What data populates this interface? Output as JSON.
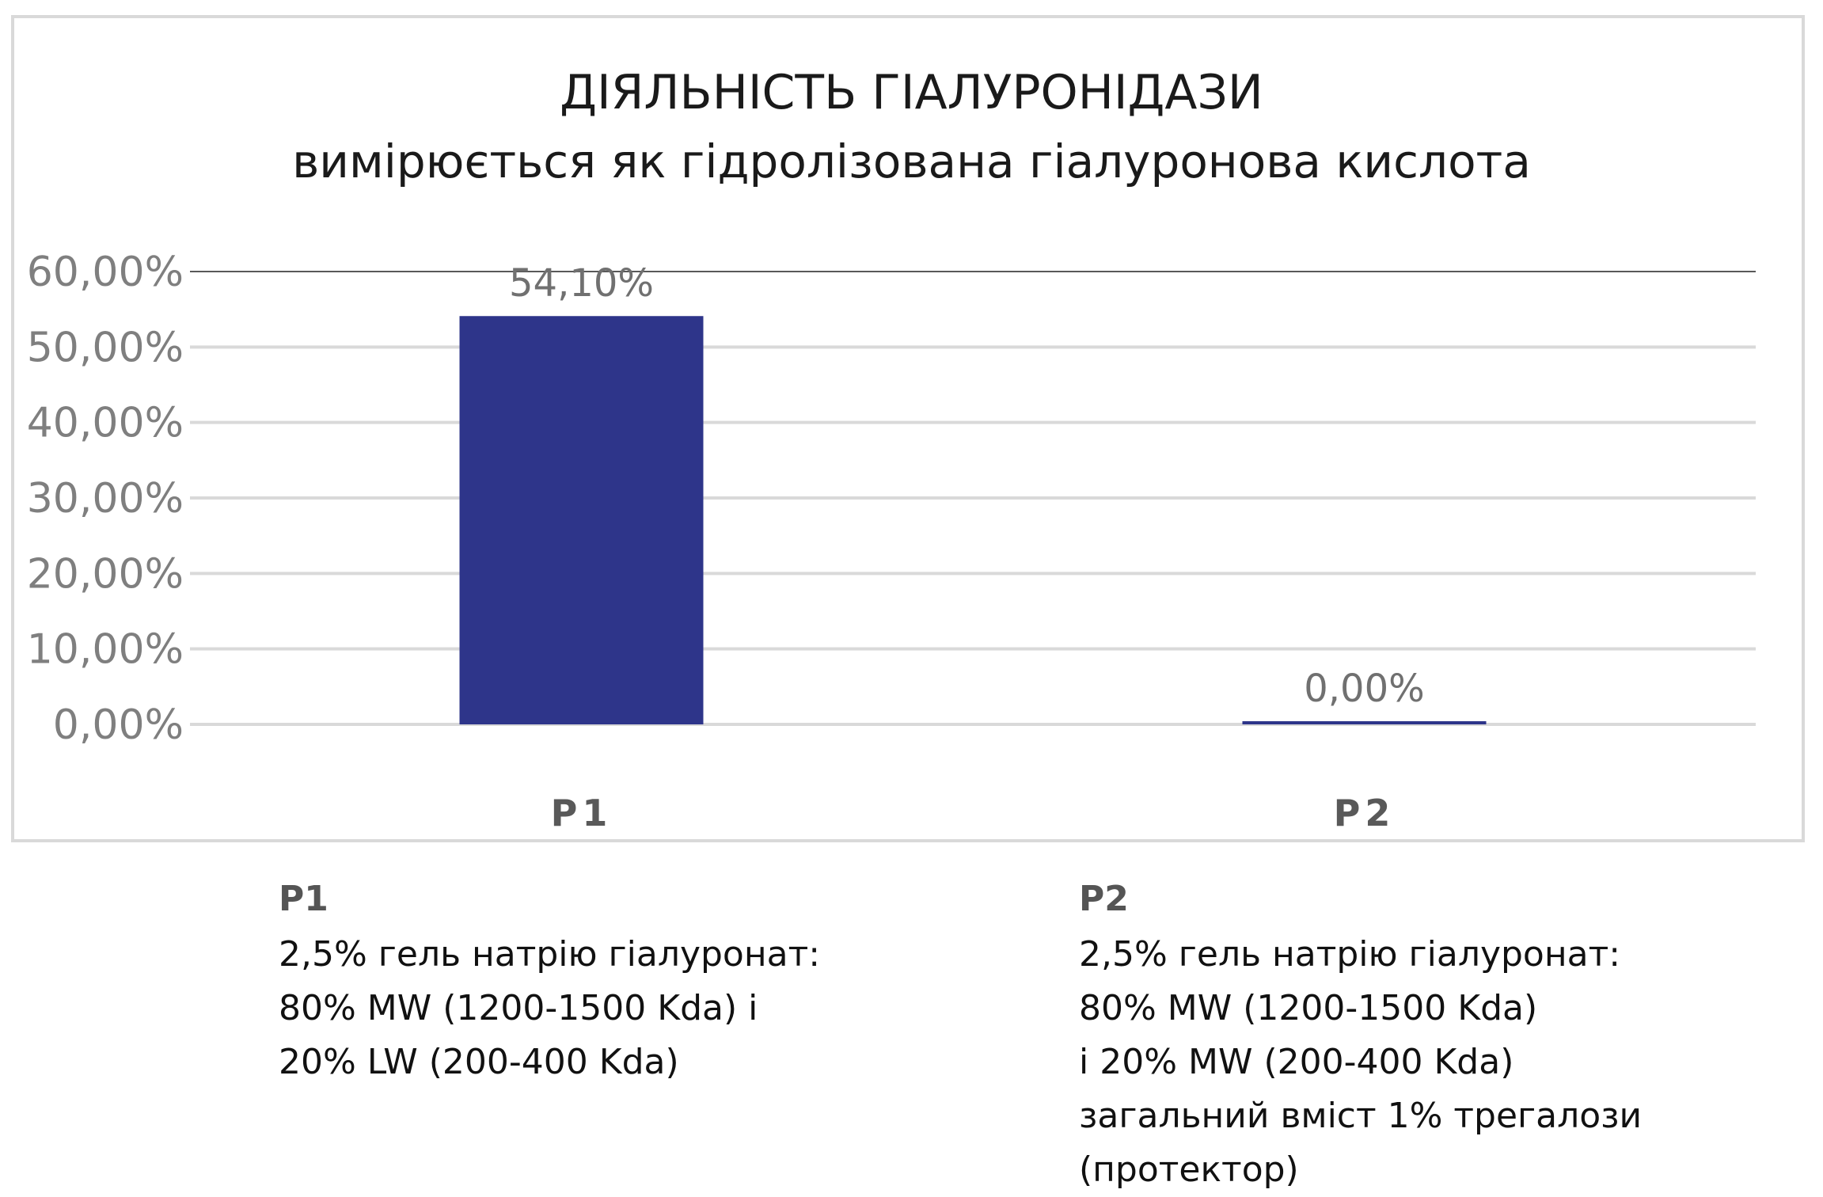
{
  "chart_data": {
    "type": "bar",
    "title": "ДІЯЛЬНІСТЬ ГІАЛУРОНІДАЗИ",
    "subtitle": "вимірюється як гідролізована гіалуронова кислота",
    "categories": [
      "P1",
      "P2"
    ],
    "values": [
      54.1,
      0.0
    ],
    "data_labels": [
      "54,10%",
      "0,00%"
    ],
    "ylim": [
      0,
      60
    ],
    "yticks": [
      0,
      10,
      20,
      30,
      40,
      50,
      60
    ],
    "ytick_labels": [
      "0,00%",
      "10,00%",
      "20,00%",
      "30,00%",
      "40,00%",
      "50,00%",
      "60,00%"
    ],
    "xlabel": "",
    "ylabel": "",
    "grid": true,
    "colors": {
      "bar": "#2e358a",
      "grid": "#d9d9d9",
      "top_line": "#595959",
      "tick_label": "#7f7f7f",
      "data_label": "#707070",
      "category_label": "#595959"
    }
  },
  "legend": [
    {
      "heading": "P1",
      "lines": [
        "2,5% гель натрію гіалуронат:",
        "80% MW (1200-1500 Kda) і",
        "20% LW (200-400 Kda)"
      ]
    },
    {
      "heading": "P2",
      "lines": [
        "2,5% гель натрію гіалуронат:",
        "80% MW (1200-1500 Kda)",
        "і 20% MW (200-400 Kda)",
        "загальний вміст 1% трегалози",
        "(протектор)"
      ]
    }
  ]
}
